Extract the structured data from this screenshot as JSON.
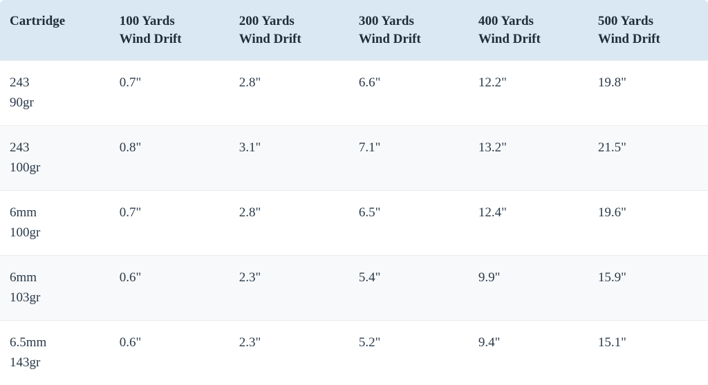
{
  "table": {
    "type": "table",
    "header_bg": "#d9e8f2",
    "row_alt_bg": "#f8f9fa",
    "row_border_color": "#e9ecef",
    "text_color": "#2a3a4a",
    "header_text_color": "#1f2d3a",
    "font_family": "Georgia, serif",
    "font_size_pt": 14,
    "header_font_weight": 700,
    "column_widths_pct": [
      15.5,
      16.9,
      16.9,
      16.9,
      16.9,
      16.9
    ],
    "columns": [
      {
        "line1": "Cartridge",
        "line2": ""
      },
      {
        "line1": "100 Yards",
        "line2": "Wind Drift"
      },
      {
        "line1": "200 Yards",
        "line2": "Wind Drift"
      },
      {
        "line1": "300 Yards",
        "line2": "Wind Drift"
      },
      {
        "line1": "400 Yards",
        "line2": "Wind Drift"
      },
      {
        "line1": "500 Yards",
        "line2": "Wind Drift"
      }
    ],
    "rows": [
      {
        "cartridge_line1": "243",
        "cartridge_line2": "90gr",
        "d100": "0.7\"",
        "d200": "2.8\"",
        "d300": "6.6\"",
        "d400": "12.2\"",
        "d500": "19.8\""
      },
      {
        "cartridge_line1": "243",
        "cartridge_line2": "100gr",
        "d100": "0.8\"",
        "d200": "3.1\"",
        "d300": "7.1\"",
        "d400": "13.2\"",
        "d500": "21.5\""
      },
      {
        "cartridge_line1": "6mm",
        "cartridge_line2": "100gr",
        "d100": "0.7\"",
        "d200": "2.8\"",
        "d300": "6.5\"",
        "d400": "12.4\"",
        "d500": "19.6\""
      },
      {
        "cartridge_line1": "6mm",
        "cartridge_line2": "103gr",
        "d100": "0.6\"",
        "d200": "2.3\"",
        "d300": "5.4\"",
        "d400": "9.9\"",
        "d500": "15.9\""
      },
      {
        "cartridge_line1": "6.5mm",
        "cartridge_line2": "143gr",
        "d100": "0.6\"",
        "d200": "2.3\"",
        "d300": "5.2\"",
        "d400": "9.4\"",
        "d500": "15.1\""
      }
    ]
  }
}
